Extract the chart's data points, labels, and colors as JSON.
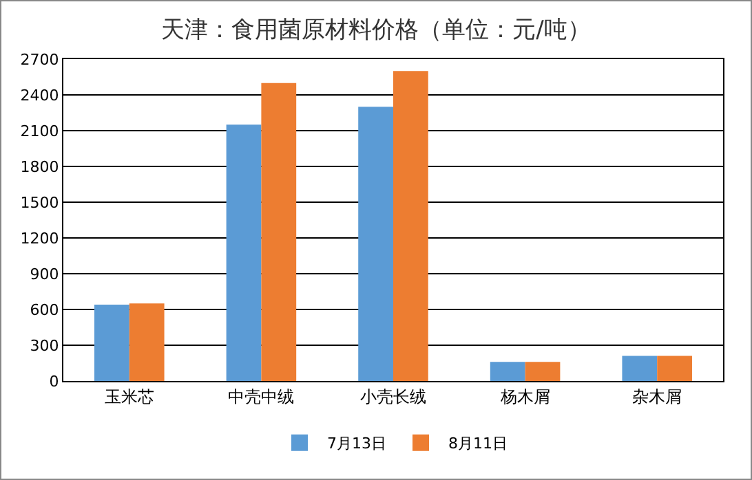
{
  "chart_data": {
    "type": "bar",
    "title": "天津：食用菌原材料价格（单位：元/吨）",
    "categories": [
      "玉米芯",
      "中壳中绒",
      "小壳长绒",
      "杨木屑",
      "杂木屑"
    ],
    "series": [
      {
        "name": "7月13日",
        "color": "#5b9bd5",
        "values": [
          640,
          2150,
          2300,
          160,
          210
        ]
      },
      {
        "name": "8月11日",
        "color": "#ed7d31",
        "values": [
          650,
          2500,
          2600,
          160,
          210
        ]
      }
    ],
    "ylim": [
      0,
      2700
    ],
    "yticks": [
      0,
      300,
      600,
      900,
      1200,
      1500,
      1800,
      2100,
      2400,
      2700
    ],
    "grid": "y",
    "legend": "bottom"
  }
}
